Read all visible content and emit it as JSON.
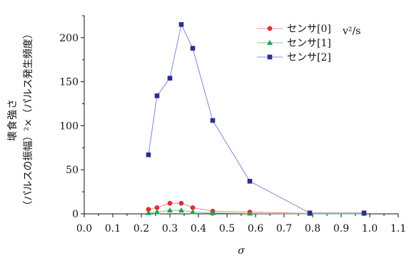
{
  "chart_data": {
    "type": "line",
    "xlabel": "σ",
    "ylabel_line1": "壊食強さ",
    "ylabel_line2": "（パルスの振幅）²×（パルス発生頻度）",
    "unit_label": "v²/s",
    "xlim": [
      0.0,
      1.1
    ],
    "ylim": [
      0,
      225
    ],
    "xticks": [
      "0.0",
      "0.1",
      "0.2",
      "0.3",
      "0.4",
      "0.5",
      "0.6",
      "0.7",
      "0.8",
      "0.9",
      "1.0",
      "1.1"
    ],
    "yticks": [
      "0",
      "50",
      "100",
      "150",
      "200"
    ],
    "grid": false,
    "legend_position": "top-right",
    "series": [
      {
        "name": "センサ[0]",
        "color": "#e03030",
        "marker": "circle",
        "points": [
          [
            0.225,
            5
          ],
          [
            0.255,
            7
          ],
          [
            0.3,
            12
          ],
          [
            0.34,
            12
          ],
          [
            0.38,
            7
          ],
          [
            0.45,
            3
          ],
          [
            0.58,
            2
          ],
          [
            0.79,
            0.5
          ],
          [
            0.98,
            0.5
          ]
        ]
      },
      {
        "name": "センサ[1]",
        "color": "#20a050",
        "marker": "triangle",
        "points": [
          [
            0.225,
            1
          ],
          [
            0.255,
            2
          ],
          [
            0.3,
            4
          ],
          [
            0.34,
            4
          ],
          [
            0.38,
            2
          ],
          [
            0.45,
            1
          ],
          [
            0.58,
            0.5
          ],
          [
            0.79,
            0.2
          ],
          [
            0.98,
            0.2
          ]
        ]
      },
      {
        "name": "センサ[2]",
        "color": "#2a3090",
        "marker": "square",
        "points": [
          [
            0.225,
            67
          ],
          [
            0.255,
            134
          ],
          [
            0.3,
            154
          ],
          [
            0.34,
            215
          ],
          [
            0.38,
            188
          ],
          [
            0.45,
            106
          ],
          [
            0.58,
            37
          ],
          [
            0.79,
            1
          ],
          [
            0.98,
            1
          ]
        ]
      }
    ]
  }
}
